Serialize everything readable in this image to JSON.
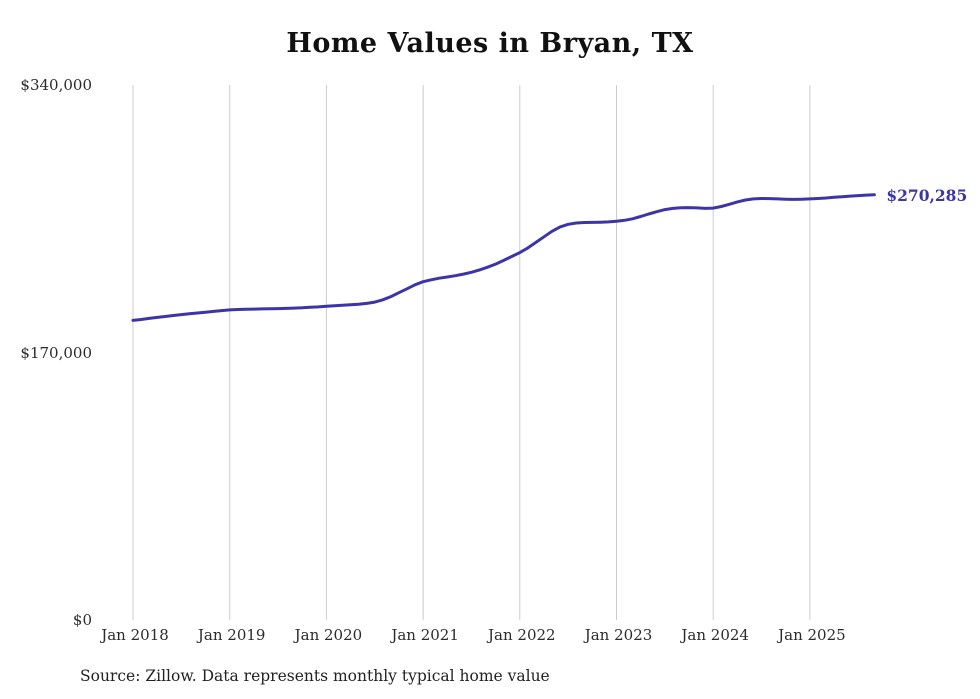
{
  "title": "Home Values in Bryan, TX",
  "source_note": "Source: Zillow. Data represents monthly typical home value",
  "end_label": "$270,285",
  "colors": {
    "line": "#3b35a8",
    "gridline": "#cccccc",
    "axis_text": "#2b2b2b",
    "title_text": "#111111"
  },
  "chart_data": {
    "type": "line",
    "title": "Home Values in Bryan, TX",
    "xlabel": "",
    "ylabel": "",
    "ylim": [
      0,
      340000
    ],
    "grid": "vertical-yearly",
    "legend_position": "none",
    "x_tick_labels": [
      "Jan 2018",
      "Jan 2019",
      "Jan 2020",
      "Jan 2021",
      "Jan 2022",
      "Jan 2023",
      "Jan 2024",
      "Jan 2025"
    ],
    "y_ticks": [
      {
        "label": "$0",
        "value": 0
      },
      {
        "label": "$170,000",
        "value": 170000
      },
      {
        "label": "$340,000",
        "value": 340000
      }
    ],
    "end_value": 270285,
    "end_value_label": "$270,285",
    "series": [
      {
        "name": "Monthly typical home value",
        "frequency": "monthly",
        "start": "Jan 2018",
        "values": [
          190400,
          191000,
          191700,
          192300,
          192900,
          193500,
          194100,
          194600,
          195100,
          195600,
          196100,
          196600,
          197100,
          197300,
          197500,
          197600,
          197700,
          197800,
          197900,
          198000,
          198200,
          198400,
          198700,
          199000,
          199400,
          199700,
          200000,
          200300,
          200700,
          201200,
          202000,
          203500,
          205500,
          208000,
          210500,
          213000,
          215000,
          216200,
          217200,
          218000,
          218800,
          219800,
          221000,
          222500,
          224200,
          226200,
          228500,
          231000,
          233500,
          236500,
          240000,
          243500,
          247000,
          249800,
          251500,
          252300,
          252600,
          252700,
          252800,
          253000,
          253400,
          254000,
          255000,
          256400,
          258000,
          259500,
          260800,
          261600,
          262000,
          262100,
          261900,
          261600,
          261800,
          262800,
          264200,
          265700,
          266900,
          267600,
          267900,
          267800,
          267600,
          267400,
          267300,
          267400,
          267600,
          267900,
          268200,
          268600,
          269000,
          269400,
          269700,
          270000,
          270285
        ]
      }
    ]
  }
}
